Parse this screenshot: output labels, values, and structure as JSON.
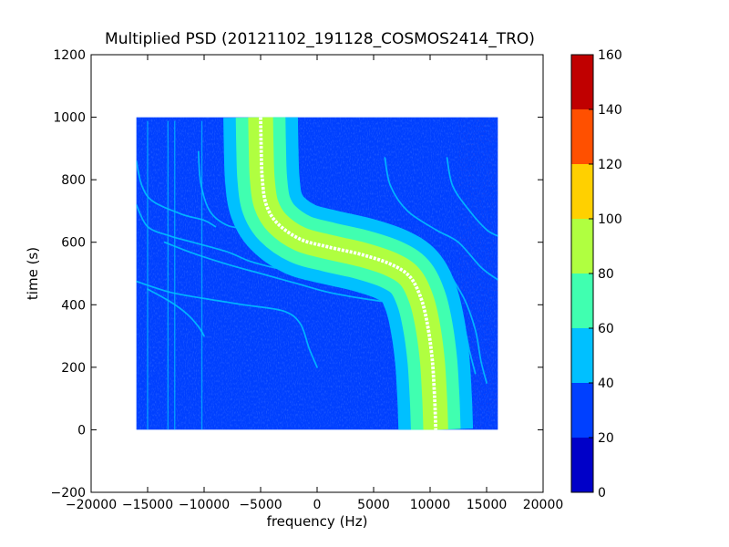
{
  "chart_data": {
    "type": "heatmap",
    "title": "Multiplied PSD (20121102_191128_COSMOS2414_TRO)",
    "xlabel": "frequency (Hz)",
    "ylabel": "time (s)",
    "xlim": [
      -20000,
      20000
    ],
    "ylim": [
      -200,
      1200
    ],
    "x_ticks": [
      -20000,
      -15000,
      -10000,
      -5000,
      0,
      5000,
      10000,
      15000,
      20000
    ],
    "x_tick_labels": [
      "−20000",
      "−15000",
      "−10000",
      "−5000",
      "0",
      "5000",
      "10000",
      "15000",
      "20000"
    ],
    "y_ticks": [
      -200,
      0,
      200,
      400,
      600,
      800,
      1000,
      1200
    ],
    "y_tick_labels": [
      "−200",
      "0",
      "200",
      "400",
      "600",
      "800",
      "1000",
      "1200"
    ],
    "data_extent": {
      "x": [
        -16000,
        16000
      ],
      "y": [
        0,
        1000
      ]
    },
    "background_level": 25,
    "grid": false,
    "colorbar": {
      "range": [
        0,
        160
      ],
      "ticks": [
        0,
        20,
        40,
        60,
        80,
        100,
        120,
        140,
        160
      ],
      "tick_labels": [
        "0",
        "20",
        "40",
        "60",
        "80",
        "100",
        "120",
        "140",
        "160"
      ],
      "bands": [
        {
          "from": 0,
          "to": 20,
          "color": "#0000c8"
        },
        {
          "from": 20,
          "to": 40,
          "color": "#0040ff"
        },
        {
          "from": 40,
          "to": 60,
          "color": "#00c0ff"
        },
        {
          "from": 60,
          "to": 80,
          "color": "#40ffb0"
        },
        {
          "from": 80,
          "to": 100,
          "color": "#b0ff40"
        },
        {
          "from": 100,
          "to": 120,
          "color": "#ffd000"
        },
        {
          "from": 120,
          "to": 140,
          "color": "#ff5000"
        },
        {
          "from": 140,
          "to": 160,
          "color": "#c00000"
        }
      ]
    },
    "main_doppler_trace": {
      "points": [
        [
          -5000,
          1000
        ],
        [
          -4950,
          900
        ],
        [
          -4850,
          800
        ],
        [
          -4500,
          720
        ],
        [
          -3500,
          660
        ],
        [
          -1500,
          610
        ],
        [
          1000,
          585
        ],
        [
          4000,
          560
        ],
        [
          6500,
          530
        ],
        [
          8200,
          490
        ],
        [
          9200,
          420
        ],
        [
          9800,
          330
        ],
        [
          10200,
          220
        ],
        [
          10400,
          100
        ],
        [
          10500,
          0
        ]
      ],
      "band_levels": [
        {
          "half_width_hz": 3300,
          "level": 50
        },
        {
          "half_width_hz": 2200,
          "level": 70
        },
        {
          "half_width_hz": 1100,
          "level": 90
        },
        {
          "half_width_hz": 150,
          "level": 160,
          "color": "#ffffff"
        }
      ]
    },
    "faint_traces": [
      {
        "level": 45,
        "points": [
          [
            -16000,
            860
          ],
          [
            -15500,
            780
          ],
          [
            -14500,
            730
          ],
          [
            -12000,
            690
          ],
          [
            -10000,
            670
          ],
          [
            -9000,
            650
          ]
        ]
      },
      {
        "level": 45,
        "points": [
          [
            -16000,
            720
          ],
          [
            -15000,
            650
          ],
          [
            -13000,
            620
          ],
          [
            -11000,
            600
          ],
          [
            -8000,
            570
          ],
          [
            -6000,
            540
          ],
          [
            -4000,
            520
          ],
          [
            -2000,
            505
          ]
        ]
      },
      {
        "level": 45,
        "points": [
          [
            -10500,
            890
          ],
          [
            -10300,
            790
          ],
          [
            -9500,
            700
          ],
          [
            -8000,
            655
          ],
          [
            -6000,
            640
          ],
          [
            -4000,
            615
          ],
          [
            -1000,
            590
          ]
        ]
      },
      {
        "level": 45,
        "points": [
          [
            -13500,
            600
          ],
          [
            -11000,
            565
          ],
          [
            -8000,
            530
          ],
          [
            -5000,
            500
          ],
          [
            -2000,
            470
          ],
          [
            1000,
            440
          ],
          [
            4000,
            420
          ],
          [
            7000,
            405
          ]
        ]
      },
      {
        "level": 45,
        "points": [
          [
            -16000,
            475
          ],
          [
            -13000,
            440
          ],
          [
            -10000,
            420
          ],
          [
            -6500,
            400
          ],
          [
            -3000,
            380
          ],
          [
            -1500,
            340
          ],
          [
            -700,
            260
          ],
          [
            0,
            200
          ]
        ]
      },
      {
        "level": 45,
        "points": [
          [
            -15000,
            450
          ],
          [
            -13000,
            410
          ],
          [
            -11500,
            370
          ],
          [
            -10500,
            330
          ],
          [
            -10000,
            300
          ]
        ]
      },
      {
        "level": 45,
        "points": [
          [
            2000,
            510
          ],
          [
            5000,
            485
          ],
          [
            8000,
            455
          ],
          [
            10500,
            430
          ],
          [
            12000,
            400
          ],
          [
            13000,
            330
          ],
          [
            13500,
            250
          ],
          [
            14000,
            180
          ]
        ]
      },
      {
        "level": 45,
        "points": [
          [
            6000,
            870
          ],
          [
            6500,
            780
          ],
          [
            8000,
            700
          ],
          [
            10500,
            640
          ],
          [
            12500,
            600
          ],
          [
            14500,
            520
          ],
          [
            16000,
            480
          ]
        ]
      },
      {
        "level": 45,
        "points": [
          [
            11500,
            870
          ],
          [
            12000,
            780
          ],
          [
            13500,
            700
          ],
          [
            15000,
            640
          ],
          [
            16000,
            620
          ]
        ]
      },
      {
        "level": 45,
        "points": [
          [
            11000,
            540
          ],
          [
            13000,
            420
          ],
          [
            14000,
            320
          ],
          [
            14500,
            220
          ],
          [
            15000,
            150
          ]
        ]
      }
    ],
    "vertical_lines": [
      {
        "x": -15000,
        "level": 40
      },
      {
        "x": -13200,
        "level": 55
      },
      {
        "x": -12600,
        "level": 55
      },
      {
        "x": -10200,
        "level": 40
      }
    ]
  }
}
